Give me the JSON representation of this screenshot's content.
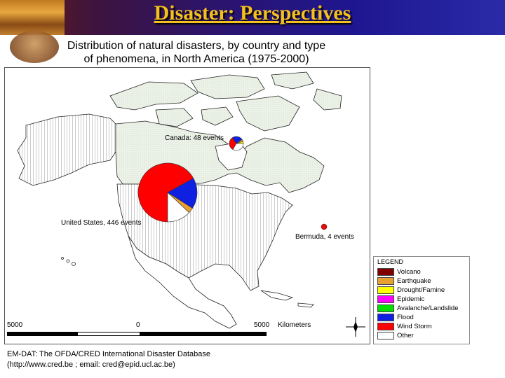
{
  "slide": {
    "title": "Disaster:  Perspectives"
  },
  "map": {
    "title_line1": "Distribution of natural disasters, by country and type",
    "title_line2": "of phenomena, in North America (1975-2000)",
    "annotations": {
      "canada": "Canada: 48 events",
      "usa": "United States, 446 events",
      "bermuda": "Bermuda, 4 events"
    }
  },
  "legend": {
    "title": "LEGEND",
    "items": [
      {
        "label": "Volcano",
        "color": "#800000"
      },
      {
        "label": "Earthquake",
        "color": "#e8a030"
      },
      {
        "label": "Drought/Famine",
        "color": "#ffff00"
      },
      {
        "label": "Epidemic",
        "color": "#ff00ff"
      },
      {
        "label": "Avalanche/Landslide",
        "color": "#00e000"
      },
      {
        "label": "Flood",
        "color": "#1020e0"
      },
      {
        "label": "Wind Storm",
        "color": "#ff0000"
      },
      {
        "label": "Other",
        "color": "#ffffff"
      }
    ]
  },
  "scale": {
    "left": "5000",
    "mid": "0",
    "right": "5000",
    "unit": "Kilometers"
  },
  "footer": {
    "line1": "EM-DAT: The OFDA/CRED International Disaster Database",
    "line2": "(http://www.cred.be ; email: cred@epid.ucl.ac.be)"
  },
  "chart_data": {
    "type": "pie",
    "pies": [
      {
        "location": "United States",
        "total_events": 446,
        "slices": [
          {
            "type": "Wind Storm",
            "share": 0.67
          },
          {
            "type": "Flood",
            "share": 0.17
          },
          {
            "type": "Earthquake",
            "share": 0.03
          },
          {
            "type": "Other",
            "share": 0.13
          }
        ]
      },
      {
        "location": "Canada",
        "total_events": 48,
        "slices": [
          {
            "type": "Wind Storm",
            "share": 0.32
          },
          {
            "type": "Flood",
            "share": 0.25
          },
          {
            "type": "Earthquake",
            "share": 0.05
          },
          {
            "type": "Drought/Famine",
            "share": 0.05
          },
          {
            "type": "Other",
            "share": 0.33
          }
        ]
      },
      {
        "location": "Bermuda",
        "total_events": 4,
        "slices": [
          {
            "type": "Wind Storm",
            "share": 1.0
          }
        ]
      }
    ]
  }
}
